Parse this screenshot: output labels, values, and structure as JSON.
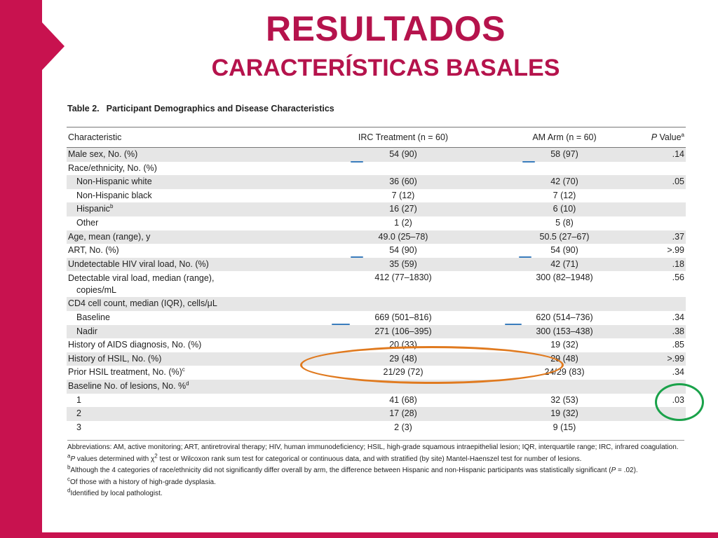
{
  "slide": {
    "title": "RESULTADOS",
    "subtitle": "CARACTERÍSTICAS BASALES",
    "accent_color": "#c8124f"
  },
  "table": {
    "number": "Table 2.",
    "title": "Participant Demographics and Disease Characteristics",
    "headers": {
      "characteristic": "Characteristic",
      "irc": "IRC Treatment (n = 60)",
      "am": "AM Arm (n = 60)",
      "p_italic": "P",
      "p_rest": " Value",
      "p_sup": "a"
    },
    "rows": [
      {
        "label": "Male sex, No. (%)",
        "irc": "54 (90)",
        "am": "58 (97)",
        "p": ".14"
      },
      {
        "label": "Race/ethnicity, No. (%)",
        "irc": "",
        "am": "",
        "p": ""
      },
      {
        "label": "Non-Hispanic white",
        "irc": "36 (60)",
        "am": "42 (70)",
        "p": ".05"
      },
      {
        "label": "Non-Hispanic black",
        "irc": "7 (12)",
        "am": "7 (12)",
        "p": ""
      },
      {
        "label": "Hispanic",
        "sup": "b",
        "irc": "16 (27)",
        "am": "6 (10)",
        "p": ""
      },
      {
        "label": "Other",
        "irc": "1 (2)",
        "am": "5 (8)",
        "p": ""
      },
      {
        "label": "Age, mean (range), y",
        "irc": "49.0 (25–78)",
        "am": "50.5 (27–67)",
        "p": ".37"
      },
      {
        "label": "ART, No. (%)",
        "irc": "54 (90)",
        "am": "54 (90)",
        "p": ">.99"
      },
      {
        "label": "Undetectable HIV viral load, No. (%)",
        "irc": "35 (59)",
        "am": "42 (71)",
        "p": ".18"
      },
      {
        "label": "Detectable viral load, median (range),",
        "label2": "copies/mL",
        "irc": "412 (77–1830)",
        "am": "300 (82–1948)",
        "p": ".56"
      },
      {
        "label": "CD4 cell count, median (IQR), cells/μL",
        "irc": "",
        "am": "",
        "p": ""
      },
      {
        "label": "Baseline",
        "irc": "669 (501–816)",
        "am": "620 (514–736)",
        "p": ".34"
      },
      {
        "label": "Nadir",
        "irc": "271 (106–395)",
        "am": "300 (153–438)",
        "p": ".38"
      },
      {
        "label": "History of AIDS diagnosis, No. (%)",
        "irc": "20 (33)",
        "am": "19 (32)",
        "p": ".85"
      },
      {
        "label": "History of HSIL, No. (%)",
        "irc": "29 (48)",
        "am": "29 (48)",
        "p": ">.99"
      },
      {
        "label": "Prior HSIL treatment, No. (%)",
        "sup": "c",
        "irc": "21/29 (72)",
        "am": "24/29 (83)",
        "p": ".34"
      },
      {
        "label": "Baseline No. of lesions, No. %",
        "sup": "d",
        "irc": "",
        "am": "",
        "p": ""
      },
      {
        "label": "1",
        "irc": "41 (68)",
        "am": "32 (53)",
        "p": ".03"
      },
      {
        "label": "2",
        "irc": "17 (28)",
        "am": "19 (32)",
        "p": ""
      },
      {
        "label": "3",
        "irc": "2 (3)",
        "am": "9 (15)",
        "p": ""
      }
    ],
    "notes": {
      "abbrev": "Abbreviations: AM, active monitoring; ART, antiretroviral therapy; HIV, human immunodeficiency; HSIL, high-grade squamous intraepithelial lesion; IQR, interquartile range; IRC, infrared coagulation.",
      "a_sup": "a",
      "a_p": "P",
      "a_text1": " values determined with χ",
      "a_chi_sup": "2",
      "a_text2": " test or Wilcoxon rank sum test for categorical or continuous data, and with stratified (by site) Mantel-Haenszel test for number of lesions.",
      "b_sup": "b",
      "b_text1": "Although the 4 categories of race/ethnicity did not significantly differ overall by arm, the difference between Hispanic and non-Hispanic participants was statistically significant (",
      "b_p": "P",
      "b_text2": " = .02).",
      "c_sup": "c",
      "c_text": "Of those with a history of high-grade dysplasia.",
      "d_sup": "d",
      "d_text": "Identified by local pathologist."
    }
  },
  "annotations": {
    "orange_color": "#e07a1f",
    "green_color": "#1aa24a",
    "underline_color": "#3a7dbd"
  }
}
